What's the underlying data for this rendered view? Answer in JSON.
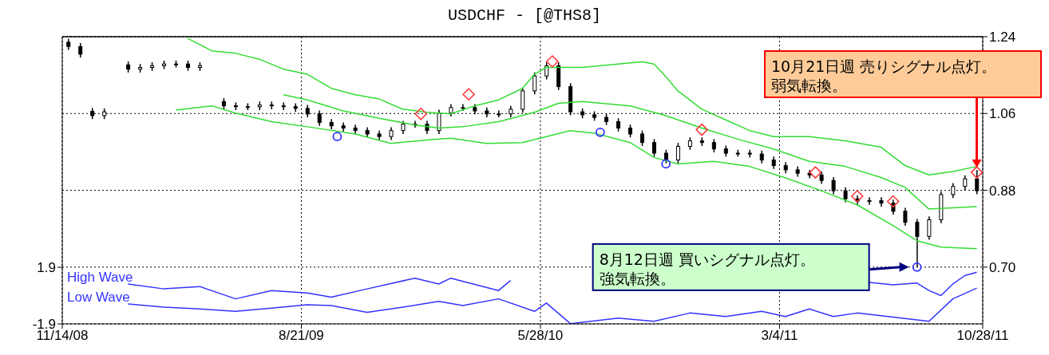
{
  "chart_data": {
    "type": "candlestick",
    "title": "USDCHF  -  [@THS8]",
    "xlim": [
      "2008-11-14",
      "2011-10-28"
    ],
    "xticks": [
      {
        "value": "2008-11-14",
        "label": "11/14/08"
      },
      {
        "value": "2009-08-21",
        "label": "8/21/09"
      },
      {
        "value": "2010-05-28",
        "label": "5/28/10"
      },
      {
        "value": "2011-03-04",
        "label": "3/4/11"
      },
      {
        "value": "2011-10-28",
        "label": "10/28/11"
      }
    ],
    "y2lim": [
      -1.9,
      17.38
    ],
    "y2ticks": [
      1.9,
      -1.9
    ],
    "ylim": [
      0.567,
      1.24
    ],
    "yticks": [
      {
        "value": 0.7,
        "label": "0.70"
      },
      0.88,
      1.06,
      1.24
    ],
    "grid": true,
    "series": [
      {
        "type": "candlestick",
        "color": "#000000",
        "x": [
          "2008-11-21",
          "2008-12-05",
          "2008-12-19",
          "2009-01-02",
          "2009-01-30",
          "2009-02-13",
          "2009-02-27",
          "2009-03-13",
          "2009-03-27",
          "2009-04-10",
          "2009-04-24",
          "2009-05-22",
          "2009-06-05",
          "2009-06-19",
          "2009-07-03",
          "2009-07-17",
          "2009-07-31",
          "2009-08-14",
          "2009-08-28",
          "2009-09-11",
          "2009-09-25",
          "2009-10-09",
          "2009-10-23",
          "2009-11-06",
          "2009-11-20",
          "2009-12-04",
          "2009-12-18",
          "2010-01-01",
          "2010-01-15",
          "2010-01-29",
          "2010-02-12",
          "2010-02-26",
          "2010-03-12",
          "2010-03-26",
          "2010-04-09",
          "2010-04-23",
          "2010-05-07",
          "2010-05-21",
          "2010-06-04",
          "2010-06-18",
          "2010-07-02",
          "2010-07-16",
          "2010-07-30",
          "2010-08-13",
          "2010-08-27",
          "2010-09-10",
          "2010-09-24",
          "2010-10-08",
          "2010-10-22",
          "2010-11-05",
          "2010-11-19",
          "2010-12-03",
          "2010-12-17",
          "2010-12-31",
          "2011-01-14",
          "2011-01-28",
          "2011-02-11",
          "2011-02-25",
          "2011-03-11",
          "2011-03-25",
          "2011-04-08",
          "2011-04-22",
          "2011-05-06",
          "2011-05-20",
          "2011-06-03",
          "2011-06-17",
          "2011-07-01",
          "2011-07-15",
          "2011-07-29",
          "2011-08-12",
          "2011-08-26",
          "2011-09-09",
          "2011-09-23",
          "2011-10-07",
          "2011-10-21"
        ],
        "ohlc": [
          [
            1.227,
            1.235,
            1.209,
            1.217
          ],
          [
            1.217,
            1.225,
            1.191,
            1.199
          ],
          [
            1.065,
            1.073,
            1.047,
            1.055
          ],
          [
            1.055,
            1.072,
            1.047,
            1.064
          ],
          [
            1.174,
            1.182,
            1.156,
            1.164
          ],
          [
            1.164,
            1.176,
            1.156,
            1.168
          ],
          [
            1.168,
            1.18,
            1.16,
            1.172
          ],
          [
            1.172,
            1.184,
            1.164,
            1.176
          ],
          [
            1.176,
            1.184,
            1.168,
            1.176
          ],
          [
            1.176,
            1.184,
            1.16,
            1.168
          ],
          [
            1.168,
            1.18,
            1.16,
            1.172
          ],
          [
            1.088,
            1.096,
            1.07,
            1.078
          ],
          [
            1.078,
            1.086,
            1.068,
            1.076
          ],
          [
            1.076,
            1.084,
            1.068,
            1.076
          ],
          [
            1.076,
            1.088,
            1.068,
            1.08
          ],
          [
            1.08,
            1.088,
            1.07,
            1.078
          ],
          [
            1.078,
            1.086,
            1.068,
            1.076
          ],
          [
            1.076,
            1.084,
            1.064,
            1.072
          ],
          [
            1.072,
            1.08,
            1.051,
            1.059
          ],
          [
            1.059,
            1.067,
            1.031,
            1.039
          ],
          [
            1.039,
            1.047,
            1.023,
            1.031
          ],
          [
            1.031,
            1.039,
            1.018,
            1.026
          ],
          [
            1.026,
            1.034,
            1.012,
            1.02
          ],
          [
            1.02,
            1.028,
            1.004,
            1.012
          ],
          [
            1.012,
            1.02,
            0.998,
            1.006
          ],
          [
            1.006,
            1.028,
            0.998,
            1.02
          ],
          [
            1.02,
            1.043,
            1.012,
            1.035
          ],
          [
            1.035,
            1.043,
            1.027,
            1.035
          ],
          [
            1.035,
            1.043,
            1.012,
            1.02
          ],
          [
            1.02,
            1.069,
            1.012,
            1.061
          ],
          [
            1.061,
            1.082,
            1.053,
            1.074
          ],
          [
            1.074,
            1.082,
            1.066,
            1.074
          ],
          [
            1.074,
            1.082,
            1.058,
            1.066
          ],
          [
            1.066,
            1.074,
            1.051,
            1.059
          ],
          [
            1.059,
            1.067,
            1.051,
            1.059
          ],
          [
            1.059,
            1.078,
            1.051,
            1.07
          ],
          [
            1.07,
            1.121,
            1.062,
            1.113
          ],
          [
            1.113,
            1.156,
            1.105,
            1.148
          ],
          [
            1.148,
            1.18,
            1.14,
            1.172
          ],
          [
            1.172,
            1.18,
            1.115,
            1.123
          ],
          [
            1.123,
            1.131,
            1.056,
            1.064
          ],
          [
            1.064,
            1.072,
            1.049,
            1.057
          ],
          [
            1.057,
            1.065,
            1.043,
            1.051
          ],
          [
            1.051,
            1.059,
            1.033,
            1.041
          ],
          [
            1.041,
            1.049,
            1.018,
            1.026
          ],
          [
            1.026,
            1.034,
            1.004,
            1.012
          ],
          [
            1.012,
            1.02,
            0.984,
            0.992
          ],
          [
            0.992,
            1.0,
            0.959,
            0.967
          ],
          [
            0.967,
            0.975,
            0.943,
            0.951
          ],
          [
            0.951,
            0.991,
            0.943,
            0.983
          ],
          [
            0.983,
            1.004,
            0.975,
            0.996
          ],
          [
            0.996,
            1.004,
            0.984,
            0.992
          ],
          [
            0.992,
            1.0,
            0.969,
            0.977
          ],
          [
            0.977,
            0.985,
            0.959,
            0.967
          ],
          [
            0.967,
            0.975,
            0.959,
            0.967
          ],
          [
            0.967,
            0.975,
            0.957,
            0.965
          ],
          [
            0.965,
            0.973,
            0.943,
            0.951
          ],
          [
            0.951,
            0.959,
            0.93,
            0.938
          ],
          [
            0.938,
            0.946,
            0.92,
            0.928
          ],
          [
            0.928,
            0.936,
            0.912,
            0.92
          ],
          [
            0.92,
            0.928,
            0.908,
            0.916
          ],
          [
            0.916,
            0.924,
            0.895,
            0.903
          ],
          [
            0.903,
            0.911,
            0.871,
            0.879
          ],
          [
            0.879,
            0.887,
            0.852,
            0.86
          ],
          [
            0.86,
            0.868,
            0.846,
            0.854
          ],
          [
            0.854,
            0.864,
            0.846,
            0.856
          ],
          [
            0.856,
            0.864,
            0.842,
            0.85
          ],
          [
            0.85,
            0.858,
            0.823,
            0.831
          ],
          [
            0.831,
            0.839,
            0.797,
            0.805
          ],
          [
            0.805,
            0.813,
            0.7,
            0.772
          ],
          [
            0.772,
            0.819,
            0.764,
            0.811
          ],
          [
            0.811,
            0.878,
            0.803,
            0.87
          ],
          [
            0.87,
            0.897,
            0.862,
            0.889
          ],
          [
            0.889,
            0.915,
            0.881,
            0.907
          ],
          [
            0.907,
            0.928,
            0.871,
            0.879
          ]
        ]
      },
      {
        "type": "line",
        "color": "#33dd33",
        "x": [
          "2009-04-10",
          "2009-05-08",
          "2009-06-05",
          "2009-07-03",
          "2009-07-31",
          "2009-08-28",
          "2009-09-25",
          "2009-10-23",
          "2009-11-20",
          "2009-12-18",
          "2010-01-15",
          "2010-02-12",
          "2010-03-12",
          "2010-04-09",
          "2010-05-07",
          "2010-05-21",
          "2010-06-04",
          "2010-07-16",
          "2010-08-27",
          "2010-09-24",
          "2010-10-08",
          "2010-10-22",
          "2010-11-05",
          "2010-12-03",
          "2010-12-31",
          "2011-01-28",
          "2011-02-25",
          "2011-04-08",
          "2011-05-20",
          "2011-07-01",
          "2011-07-29",
          "2011-08-26",
          "2011-09-23",
          "2011-10-21"
        ],
        "values": [
          1.236,
          1.207,
          1.201,
          1.187,
          1.164,
          1.152,
          1.119,
          1.104,
          1.094,
          1.07,
          1.063,
          1.059,
          1.078,
          1.092,
          1.119,
          1.152,
          1.168,
          1.168,
          1.176,
          1.181,
          1.176,
          1.146,
          1.113,
          1.07,
          1.045,
          1.02,
          1.006,
          1.006,
          0.996,
          0.981,
          0.938,
          0.916,
          0.924,
          0.936
        ]
      },
      {
        "type": "line",
        "color": "#33dd33",
        "x": [
          "2009-07-31",
          "2009-08-28",
          "2009-10-09",
          "2009-11-20",
          "2010-01-01",
          "2010-01-29",
          "2010-02-26",
          "2010-04-09",
          "2010-05-21",
          "2010-06-18",
          "2010-07-16",
          "2010-09-10",
          "2010-10-22",
          "2010-12-03",
          "2011-01-14",
          "2011-02-25",
          "2011-04-08",
          "2011-05-20",
          "2011-07-01",
          "2011-07-29",
          "2011-08-26",
          "2011-10-21"
        ],
        "values": [
          1.104,
          1.092,
          1.066,
          1.049,
          1.033,
          1.026,
          1.029,
          1.041,
          1.063,
          1.084,
          1.088,
          1.078,
          1.055,
          1.026,
          1.0,
          0.977,
          0.948,
          0.936,
          0.91,
          0.887,
          0.836,
          0.842
        ]
      },
      {
        "type": "line",
        "color": "#33dd33",
        "x": [
          "2009-03-27",
          "2009-05-08",
          "2009-06-05",
          "2009-07-17",
          "2009-08-28",
          "2009-10-23",
          "2009-12-04",
          "2010-01-15",
          "2010-02-12",
          "2010-03-26",
          "2010-05-07",
          "2010-06-04",
          "2010-07-02",
          "2010-07-30",
          "2010-09-10",
          "2010-10-08",
          "2010-11-05",
          "2010-12-17",
          "2011-01-28",
          "2011-03-11",
          "2011-04-22",
          "2011-06-03",
          "2011-07-15",
          "2011-08-12",
          "2011-09-09",
          "2011-10-21"
        ],
        "values": [
          1.068,
          1.078,
          1.061,
          1.041,
          1.029,
          1.012,
          0.99,
          0.998,
          1.002,
          0.99,
          0.992,
          1.006,
          1.02,
          1.014,
          0.992,
          0.957,
          0.942,
          0.948,
          0.936,
          0.909,
          0.879,
          0.846,
          0.797,
          0.762,
          0.747,
          0.743
        ]
      },
      {
        "type": "scatter",
        "marker": "diamond",
        "color": "#ff3333",
        "x": [
          "2010-01-08",
          "2010-03-05",
          "2010-06-11",
          "2010-12-03",
          "2011-04-15",
          "2011-06-03",
          "2011-07-15",
          "2011-10-21"
        ],
        "values": [
          1.059,
          1.105,
          1.182,
          1.022,
          0.922,
          0.866,
          0.854,
          0.922
        ]
      },
      {
        "type": "scatter",
        "marker": "circle",
        "color": "#3333ff",
        "x": [
          "2009-10-02",
          "2010-08-06",
          "2010-10-22",
          "2011-08-12"
        ],
        "values": [
          1.006,
          1.016,
          0.942,
          0.7
        ]
      },
      {
        "type": "line",
        "axis": "y2",
        "name": "High Wave",
        "color": "#3333ff",
        "x": [
          "2009-01-30",
          "2009-03-13",
          "2009-04-24",
          "2009-06-05",
          "2009-07-17",
          "2009-08-28",
          "2009-09-25",
          "2009-11-06",
          "2010-01-01",
          "2010-01-29",
          "2010-02-12",
          "2010-04-09",
          "2010-04-23",
          "2010-05-07",
          "2011-06-17",
          "2011-07-15",
          "2011-08-12",
          "2011-08-26",
          "2011-09-09",
          "2011-09-23",
          "2011-10-07",
          "2011-10-21"
        ],
        "values": [
          0.78,
          0.45,
          0.61,
          -0.22,
          0.34,
          0.17,
          -0.11,
          0.45,
          1.17,
          0.78,
          1.17,
          0.34,
          1.01,
          null,
          0.89,
          0.73,
          0.84,
          0.34,
          0.0,
          0.78,
          1.34,
          1.57
        ]
      },
      {
        "type": "line",
        "axis": "y2",
        "name": "Low Wave",
        "color": "#3333ff",
        "x": [
          "2009-01-30",
          "2009-03-13",
          "2009-04-24",
          "2009-06-05",
          "2009-07-17",
          "2009-08-28",
          "2009-09-25",
          "2009-11-06",
          "2009-12-18",
          "2010-01-29",
          "2010-02-26",
          "2010-04-09",
          "2010-05-21",
          "2010-06-04",
          "2010-07-02",
          "2010-08-27",
          "2010-10-08",
          "2010-11-19",
          "2010-12-31",
          "2011-02-11",
          "2011-03-11",
          "2011-04-08",
          "2011-05-06",
          "2011-06-03",
          "2011-08-26",
          "2011-09-23",
          "2011-10-21"
        ],
        "values": [
          -0.56,
          -0.78,
          -0.9,
          -1.06,
          -0.84,
          -0.62,
          -0.67,
          -1.12,
          -0.78,
          -0.39,
          -0.67,
          -0.22,
          -1.06,
          -0.5,
          -1.88,
          -1.51,
          -1.73,
          -1.17,
          -1.4,
          -1.06,
          -1.4,
          -0.9,
          -1.4,
          -1.17,
          -1.73,
          -0.22,
          0.5
        ]
      }
    ],
    "annotations": [
      "10月21日週 売りシグナル点灯。弱気転換。",
      "8月12日週 買いシグナル点灯。強気転換。"
    ]
  }
}
